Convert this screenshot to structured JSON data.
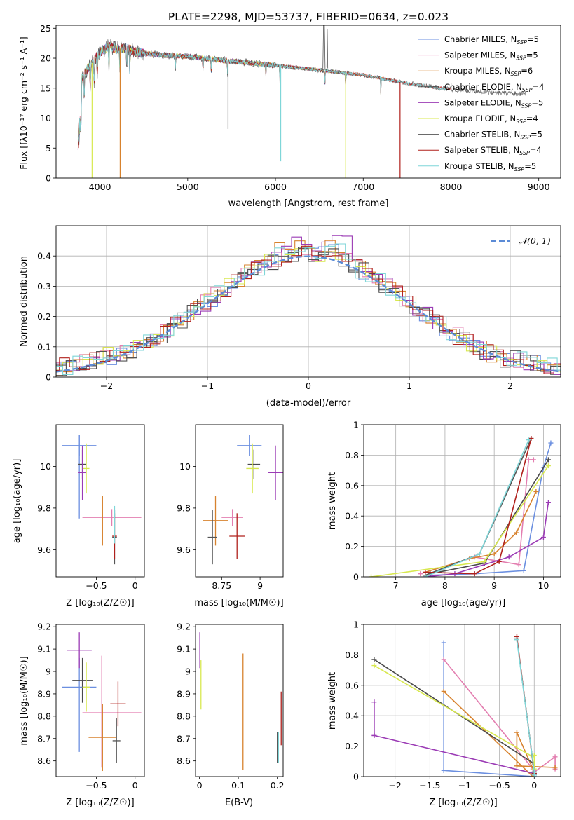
{
  "figure": {
    "panel1": {
      "title": "PLATE=2298, MJD=53737, FIBERID=0634, z=0.023",
      "xlabel": "wavelength [Angstrom, rest frame]",
      "ylabel": "Flux [fλ10⁻¹⁷ erg cm⁻² s⁻¹ A⁻¹]"
    },
    "panel2": {
      "xlabel": "(data-model)/error",
      "ylabel": "Normed distribution",
      "legend": "𝒩(0, 1)"
    },
    "panel3": {
      "xlabel": "Z [log₁₀(Z/Z☉)]",
      "ylabel": "age  [log₁₀(age/yr)]"
    },
    "panel4": {
      "xlabel": "mass [log₁₀(M/M☉)]"
    },
    "panel5": {
      "xlabel": "age  [log₁₀(age/yr)]",
      "ylabel": "mass weight"
    },
    "panel6": {
      "xlabel": "Z [log₁₀(Z/Z☉)]",
      "ylabel": "mass [log₁₀(M/M☉)]"
    },
    "panel7": {
      "xlabel": "E(B-V)"
    },
    "panel8": {
      "xlabel": "Z [log₁₀(Z/Z☉)]",
      "ylabel": "mass weight"
    }
  },
  "chart_data": [
    {
      "type": "line",
      "title": "PLATE=2298, MJD=53737, FIBERID=0634, z=0.023",
      "xlabel": "wavelength [Angstrom, rest frame]",
      "ylabel": "Flux [fλ10⁻¹⁷ erg cm⁻² s⁻¹ A⁻¹]",
      "xlim": [
        3500,
        9250
      ],
      "ylim": [
        0,
        25.5
      ],
      "xticks": [
        4000,
        5000,
        6000,
        7000,
        8000,
        9000
      ],
      "yticks": [
        0,
        5,
        10,
        15,
        20,
        25
      ],
      "legend_position": "top-right",
      "data_envelope": {
        "x": [
          3750,
          3800,
          3850,
          3900,
          3950,
          4000,
          4100,
          4200,
          4300,
          4400,
          4500,
          4700,
          5000,
          5500,
          6000,
          6500,
          7000,
          7500,
          8000,
          8500,
          8850
        ],
        "y": [
          11.5,
          17.0,
          18.0,
          19.0,
          20.0,
          21.0,
          22.0,
          21.5,
          21.8,
          21.0,
          20.8,
          20.5,
          20.3,
          19.5,
          18.8,
          18.0,
          17.2,
          15.8,
          14.8,
          14.2,
          14.0
        ]
      },
      "series": [
        {
          "name": "Chabrier MILES, N_SSP=5",
          "color": "#6b8fe0",
          "x": [
            3750,
            4000,
            4500,
            5000,
            5500,
            6000,
            6500,
            7000,
            7400
          ],
          "y": [
            16.0,
            21.0,
            20.8,
            20.3,
            19.5,
            18.8,
            18.0,
            17.2,
            16.0
          ]
        },
        {
          "name": "Salpeter MILES, N_SSP=5",
          "color": "#e37eb0",
          "x": [
            3750,
            4000,
            4500,
            5000,
            5500,
            6000,
            6500,
            7000,
            7400
          ],
          "y": [
            16.0,
            21.0,
            20.8,
            20.3,
            19.5,
            18.8,
            18.0,
            17.2,
            16.0
          ]
        },
        {
          "name": "Kroupa MILES, N_SSP=6",
          "color": "#d7822e",
          "x": [
            3750,
            4000,
            4500,
            5000,
            5500,
            6000,
            6500,
            7000,
            7400
          ],
          "y": [
            16.0,
            21.0,
            20.8,
            20.3,
            19.5,
            18.8,
            18.0,
            17.2,
            16.0
          ]
        },
        {
          "name": "Chabrier ELODIE, N_SSP=4",
          "color": "#4a4a4a",
          "x": [
            3750,
            4000,
            4500,
            5000,
            5500,
            6000,
            6500,
            6800
          ],
          "y": [
            16.0,
            21.0,
            20.8,
            20.3,
            19.5,
            18.8,
            18.0,
            17.6
          ]
        },
        {
          "name": "Salpeter ELODIE, N_SSP=5",
          "color": "#9b3bb5",
          "x": [
            3750,
            4000,
            4500,
            5000,
            5500,
            6000,
            6500,
            6800
          ],
          "y": [
            16.0,
            21.0,
            20.8,
            20.3,
            19.5,
            18.8,
            18.0,
            17.6
          ]
        },
        {
          "name": "Kroupa ELODIE, N_SSP=4",
          "color": "#d8e84f",
          "x": [
            3750,
            4000,
            4500,
            5000,
            5500,
            6000,
            6500,
            6800
          ],
          "y": [
            16.0,
            21.0,
            20.8,
            20.3,
            19.5,
            18.8,
            18.0,
            17.6
          ]
        },
        {
          "name": "Chabrier STELIB, N_SSP=5",
          "color": "#555555",
          "x": [
            3750,
            4000,
            4500,
            5000,
            5500,
            6000,
            6500,
            7000,
            7500,
            8000,
            8500,
            8850
          ],
          "y": [
            16.0,
            21.0,
            20.8,
            20.3,
            19.5,
            18.8,
            18.0,
            17.2,
            15.8,
            14.8,
            14.2,
            14.0
          ]
        },
        {
          "name": "Salpeter STELIB, N_SSP=4",
          "color": "#b0201c",
          "x": [
            3750,
            4000,
            4500,
            5000,
            5500,
            6000,
            6500,
            7000,
            7500,
            8000
          ],
          "y": [
            16.0,
            21.0,
            20.8,
            20.3,
            19.5,
            18.8,
            18.0,
            17.2,
            15.8,
            14.8
          ]
        },
        {
          "name": "Kroupa STELIB, N_SSP=5",
          "color": "#7fd6d8",
          "x": [
            3750,
            4000,
            4500,
            5000,
            5500,
            6000,
            6500,
            7000,
            7500,
            7950
          ],
          "y": [
            16.0,
            21.0,
            20.8,
            20.3,
            19.5,
            18.8,
            18.0,
            17.2,
            15.8,
            14.9
          ]
        }
      ]
    },
    {
      "type": "line",
      "xlabel": "(data-model)/error",
      "ylabel": "Normed distribution",
      "xlim": [
        -2.5,
        2.5
      ],
      "ylim": [
        0,
        0.5
      ],
      "xticks": [
        -2,
        -1,
        0,
        1,
        2
      ],
      "yticks": [
        0.0,
        0.1,
        0.2,
        0.3,
        0.4
      ],
      "grid": true,
      "legend_position": "top-right",
      "reference_curve": {
        "name": "𝒩(0, 1)",
        "color": "#5b8bd6",
        "style": "dashed",
        "mean": 0,
        "sigma": 1
      },
      "histogram_bin_width": 0.1,
      "histograms": [
        {
          "color": "#6b8fe0",
          "peak": 0.44
        },
        {
          "color": "#e37eb0",
          "peak": 0.43
        },
        {
          "color": "#d7822e",
          "peak": 0.46
        },
        {
          "color": "#4a4a4a",
          "peak": 0.42
        },
        {
          "color": "#9b3bb5",
          "peak": 0.47
        },
        {
          "color": "#d8e84f",
          "peak": 0.42
        },
        {
          "color": "#555555",
          "peak": 0.41
        },
        {
          "color": "#b0201c",
          "peak": 0.43
        },
        {
          "color": "#7fd6d8",
          "peak": 0.45
        }
      ]
    },
    {
      "type": "scatter",
      "xlabel": "Z [log₁₀(Z/Z☉)]",
      "ylabel": "age  [log₁₀(age/yr)]",
      "xlim": [
        -1.02,
        0.12
      ],
      "ylim": [
        9.47,
        10.2
      ],
      "xticks": [
        -0.5,
        0.0
      ],
      "yticks": [
        9.6,
        9.8,
        10.0
      ],
      "errorbars": [
        {
          "color": "#6b8fe0",
          "x": -0.72,
          "xerr": 0.22,
          "y": 10.1,
          "yerr": 0.05
        },
        {
          "color": "#6b8fe0",
          "x": -0.72,
          "xerr": 0.0,
          "y": 9.95,
          "yerr": 0.2
        },
        {
          "color": "#e37eb0",
          "x": -0.3,
          "xerr": 0.38,
          "y": 9.755,
          "yerr": 0.04
        },
        {
          "color": "#d7822e",
          "x": -0.42,
          "xerr": 0.0,
          "y": 9.74,
          "yerr": 0.12
        },
        {
          "color": "#4a4a4a",
          "x": -0.68,
          "xerr": 0.05,
          "y": 10.01,
          "yerr": 0.07
        },
        {
          "color": "#9b3bb5",
          "x": -0.68,
          "xerr": 0.05,
          "y": 9.97,
          "yerr": 0.13
        },
        {
          "color": "#d8e84f",
          "x": -0.63,
          "xerr": 0.04,
          "y": 9.99,
          "yerr": 0.12
        },
        {
          "color": "#555555",
          "x": -0.265,
          "xerr": 0.03,
          "y": 9.66,
          "yerr": 0.13
        },
        {
          "color": "#b0201c",
          "x": -0.265,
          "xerr": 0.03,
          "y": 9.665,
          "yerr": 0.11
        },
        {
          "color": "#7fd6d8",
          "x": -0.265,
          "xerr": 0.0,
          "y": 9.72,
          "yerr": 0.09
        }
      ]
    },
    {
      "type": "scatter",
      "xlabel": "mass [log₁₀(M/M☉)]",
      "ylabel": "",
      "xlim": [
        8.58,
        9.15
      ],
      "ylim": [
        9.47,
        10.2
      ],
      "xticks": [
        8.75,
        9.0
      ],
      "yticks": [
        9.6,
        9.8,
        10.0
      ],
      "errorbars": [
        {
          "color": "#6b8fe0",
          "x": 8.93,
          "xerr": 0.08,
          "y": 10.1,
          "yerr": 0.05
        },
        {
          "color": "#e37eb0",
          "x": 8.82,
          "xerr": 0.07,
          "y": 9.755,
          "yerr": 0.04
        },
        {
          "color": "#d7822e",
          "x": 8.71,
          "xerr": 0.08,
          "y": 9.74,
          "yerr": 0.12
        },
        {
          "color": "#4a4a4a",
          "x": 8.96,
          "xerr": 0.04,
          "y": 10.01,
          "yerr": 0.07
        },
        {
          "color": "#9b3bb5",
          "x": 9.1,
          "xerr": 0.05,
          "y": 9.97,
          "yerr": 0.13
        },
        {
          "color": "#d8e84f",
          "x": 8.95,
          "xerr": 0.04,
          "y": 9.99,
          "yerr": 0.12
        },
        {
          "color": "#555555",
          "x": 8.69,
          "xerr": 0.03,
          "y": 9.66,
          "yerr": 0.13
        },
        {
          "color": "#b0201c",
          "x": 8.85,
          "xerr": 0.05,
          "y": 9.665,
          "yerr": 0.11
        }
      ]
    },
    {
      "type": "line",
      "xlabel": "age  [log₁₀(age/yr)]",
      "ylabel": "mass weight",
      "xlim": [
        6.35,
        10.35
      ],
      "ylim": [
        0.0,
        1.0
      ],
      "xticks": [
        7,
        8,
        9,
        10
      ],
      "yticks": [
        0.0,
        0.2,
        0.4,
        0.6,
        0.8,
        1.0
      ],
      "grid": true,
      "series": [
        {
          "color": "#6b8fe0",
          "x": [
            7.7,
            8.6,
            9.6,
            10.0,
            10.15
          ],
          "y": [
            0.01,
            0.02,
            0.04,
            0.72,
            0.88
          ]
        },
        {
          "color": "#e37eb0",
          "x": [
            7.5,
            8.6,
            9.5,
            9.7,
            9.8
          ],
          "y": [
            0.02,
            0.13,
            0.08,
            0.77,
            0.77
          ]
        },
        {
          "color": "#d7822e",
          "x": [
            7.6,
            8.5,
            9.0,
            9.45,
            9.85
          ],
          "y": [
            0.03,
            0.12,
            0.15,
            0.29,
            0.56
          ]
        },
        {
          "color": "#4a4a4a",
          "x": [
            7.7,
            8.8,
            10.1
          ],
          "y": [
            0.02,
            0.09,
            0.77
          ]
        },
        {
          "color": "#9b3bb5",
          "x": [
            7.6,
            8.2,
            9.3,
            10.0,
            10.1
          ],
          "y": [
            0.0,
            0.02,
            0.13,
            0.26,
            0.49
          ]
        },
        {
          "color": "#d8e84f",
          "x": [
            6.5,
            8.8,
            10.1
          ],
          "y": [
            0.0,
            0.1,
            0.73
          ]
        },
        {
          "color": "#555555",
          "x": [
            7.6,
            8.7,
            9.75
          ],
          "y": [
            0.01,
            0.15,
            0.91
          ]
        },
        {
          "color": "#b0201c",
          "x": [
            7.6,
            8.6,
            9.1,
            9.75
          ],
          "y": [
            0.03,
            0.02,
            0.1,
            0.91
          ]
        },
        {
          "color": "#7fd6d8",
          "x": [
            7.6,
            8.7,
            9.7
          ],
          "y": [
            0.0,
            0.15,
            0.9
          ]
        }
      ]
    },
    {
      "type": "scatter",
      "xlabel": "Z [log₁₀(Z/Z☉)]",
      "ylabel": "mass [log₁₀(M/M☉)]",
      "xlim": [
        -1.02,
        0.12
      ],
      "ylim": [
        8.53,
        9.21
      ],
      "xticks": [
        -0.5,
        0.0
      ],
      "yticks": [
        8.6,
        8.7,
        8.8,
        8.9,
        9.0,
        9.1,
        9.2
      ],
      "errorbars": [
        {
          "color": "#6b8fe0",
          "x": -0.72,
          "xerr": 0.22,
          "y": 8.93,
          "yerr": 0.0
        },
        {
          "color": "#6b8fe0",
          "x": -0.72,
          "xerr": 0.0,
          "y": 8.85,
          "yerr": 0.21
        },
        {
          "color": "#e37eb0",
          "x": -0.3,
          "xerr": 0.38,
          "y": 8.815,
          "yerr": 0.0
        },
        {
          "color": "#e37eb0",
          "x": -0.43,
          "xerr": 0.0,
          "y": 8.82,
          "yerr": 0.25
        },
        {
          "color": "#d7822e",
          "x": -0.42,
          "xerr": 0.18,
          "y": 8.705,
          "yerr": 0.15
        },
        {
          "color": "#4a4a4a",
          "x": -0.68,
          "xerr": 0.13,
          "y": 8.96,
          "yerr": 0.1
        },
        {
          "color": "#9b3bb5",
          "x": -0.72,
          "xerr": 0.16,
          "y": 9.095,
          "yerr": 0.08
        },
        {
          "color": "#d8e84f",
          "x": -0.63,
          "xerr": 0.05,
          "y": 8.93,
          "yerr": 0.11
        },
        {
          "color": "#555555",
          "x": -0.24,
          "xerr": 0.05,
          "y": 8.69,
          "yerr": 0.1
        },
        {
          "color": "#b0201c",
          "x": -0.22,
          "xerr": 0.1,
          "y": 8.855,
          "yerr": 0.1
        }
      ]
    },
    {
      "type": "scatter",
      "xlabel": "E(B-V)",
      "ylabel": "",
      "xlim": [
        -0.01,
        0.215
      ],
      "ylim": [
        8.53,
        9.21
      ],
      "xticks": [
        0.0,
        0.1,
        0.2
      ],
      "yticks": [
        8.6,
        8.7,
        8.8,
        8.9,
        9.0,
        9.1,
        9.2
      ],
      "errorbars": [
        {
          "color": "#9b3bb5",
          "x": 0.001,
          "xerr": 0.0,
          "y": 9.095,
          "yerr": 0.08
        },
        {
          "color": "#d8e84f",
          "x": 0.004,
          "xerr": 0.0,
          "y": 8.94,
          "yerr": 0.11
        },
        {
          "color": "#6b8fe0",
          "x": 0.0,
          "xerr": 0.0,
          "y": 8.93,
          "yerr": 0.0
        },
        {
          "color": "#d7822e",
          "x": 0.112,
          "xerr": 0.0,
          "y": 8.82,
          "yerr": 0.26
        },
        {
          "color": "#555555",
          "x": 0.2,
          "xerr": 0.0,
          "y": 8.66,
          "yerr": 0.07
        },
        {
          "color": "#7fd6d8",
          "x": 0.203,
          "xerr": 0.0,
          "y": 8.66,
          "yerr": 0.07
        },
        {
          "color": "#b0201c",
          "x": 0.21,
          "xerr": 0.0,
          "y": 8.79,
          "yerr": 0.12
        }
      ]
    },
    {
      "type": "line",
      "xlabel": "Z [log₁₀(Z/Z☉)]",
      "ylabel": "mass weight",
      "xlim": [
        -2.45,
        0.38
      ],
      "ylim": [
        0.0,
        1.0
      ],
      "xticks": [
        -2.0,
        -1.5,
        -1.0,
        -0.5,
        0.0
      ],
      "yticks": [
        0.0,
        0.2,
        0.4,
        0.6,
        0.8,
        1.0
      ],
      "grid": true,
      "series": [
        {
          "color": "#6b8fe0",
          "x": [
            -1.3,
            -1.3,
            0.0,
            0.0
          ],
          "y": [
            0.88,
            0.04,
            0.0,
            0.02
          ]
        },
        {
          "color": "#e37eb0",
          "x": [
            -1.3,
            -0.02,
            0.0,
            0.3,
            0.3
          ],
          "y": [
            0.77,
            0.05,
            0.03,
            0.13,
            0.05
          ]
        },
        {
          "color": "#d7822e",
          "x": [
            -1.3,
            -0.02,
            0.0,
            -0.25,
            -0.25,
            0.3
          ],
          "y": [
            0.56,
            0.0,
            0.03,
            0.29,
            0.07,
            0.06
          ]
        },
        {
          "color": "#4a4a4a",
          "x": [
            -2.3,
            -0.02,
            0.0
          ],
          "y": [
            0.77,
            0.09,
            0.02
          ]
        },
        {
          "color": "#9b3bb5",
          "x": [
            -2.3,
            -2.3,
            -2.3,
            0.0,
            0.0
          ],
          "y": [
            0.49,
            0.27,
            0.27,
            0.02,
            0.01
          ]
        },
        {
          "color": "#d8e84f",
          "x": [
            -2.3,
            -0.02,
            0.0,
            0.0
          ],
          "y": [
            0.73,
            0.13,
            0.14,
            0.05
          ]
        },
        {
          "color": "#555555",
          "x": [
            -0.25,
            0.0,
            0.0
          ],
          "y": [
            0.91,
            0.03,
            0.02
          ]
        },
        {
          "color": "#b0201c",
          "x": [
            -0.25,
            0.0,
            0.0
          ],
          "y": [
            0.92,
            0.02,
            0.01
          ]
        },
        {
          "color": "#7fd6d8",
          "x": [
            -0.25,
            0.0,
            0.0
          ],
          "y": [
            0.9,
            0.03,
            0.01
          ]
        }
      ]
    }
  ]
}
